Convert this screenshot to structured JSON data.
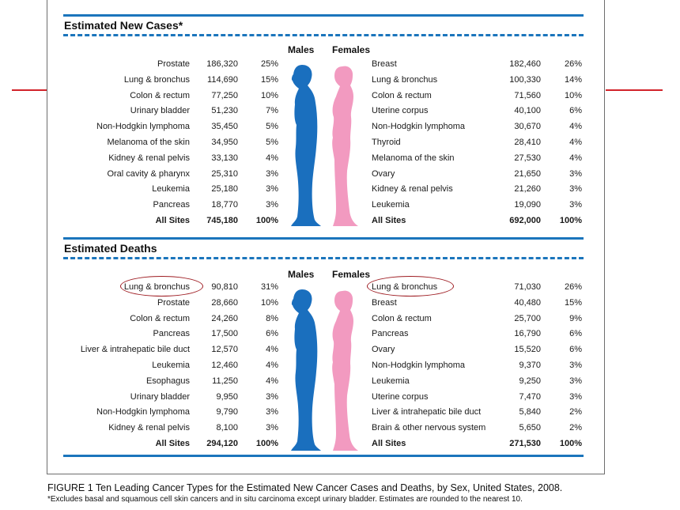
{
  "figure": {
    "caption": "FIGURE 1  Ten Leading Cancer Types for the Estimated New Cancer Cases and Deaths, by Sex, United States, 2008.",
    "footnote": "*Excludes basal and squamous cell skin cancers and in situ carcinoma except urinary bladder. Estimates are rounded to the nearest 10."
  },
  "colors": {
    "accent_blue": "#1b75bc",
    "male_blue": "#1a6fbe",
    "female_pink": "#f29ac0",
    "highlight_red": "#9e1c22"
  },
  "new_cases": {
    "title": "Estimated New Cases*",
    "males_label": "Males",
    "females_label": "Females",
    "males": [
      {
        "name": "Prostate",
        "count": "186,320",
        "pct": "25%"
      },
      {
        "name": "Lung & bronchus",
        "count": "114,690",
        "pct": "15%"
      },
      {
        "name": "Colon & rectum",
        "count": "77,250",
        "pct": "10%"
      },
      {
        "name": "Urinary bladder",
        "count": "51,230",
        "pct": "7%"
      },
      {
        "name": "Non-Hodgkin lymphoma",
        "count": "35,450",
        "pct": "5%"
      },
      {
        "name": "Melanoma of the skin",
        "count": "34,950",
        "pct": "5%"
      },
      {
        "name": "Kidney & renal pelvis",
        "count": "33,130",
        "pct": "4%"
      },
      {
        "name": "Oral cavity & pharynx",
        "count": "25,310",
        "pct": "3%"
      },
      {
        "name": "Leukemia",
        "count": "25,180",
        "pct": "3%"
      },
      {
        "name": "Pancreas",
        "count": "18,770",
        "pct": "3%"
      },
      {
        "name": "All Sites",
        "count": "745,180",
        "pct": "100%"
      }
    ],
    "females": [
      {
        "name": "Breast",
        "count": "182,460",
        "pct": "26%"
      },
      {
        "name": "Lung & bronchus",
        "count": "100,330",
        "pct": "14%"
      },
      {
        "name": "Colon & rectum",
        "count": "71,560",
        "pct": "10%"
      },
      {
        "name": "Uterine corpus",
        "count": "40,100",
        "pct": "6%"
      },
      {
        "name": "Non-Hodgkin lymphoma",
        "count": "30,670",
        "pct": "4%"
      },
      {
        "name": "Thyroid",
        "count": "28,410",
        "pct": "4%"
      },
      {
        "name": "Melanoma of the skin",
        "count": "27,530",
        "pct": "4%"
      },
      {
        "name": "Ovary",
        "count": "21,650",
        "pct": "3%"
      },
      {
        "name": "Kidney & renal pelvis",
        "count": "21,260",
        "pct": "3%"
      },
      {
        "name": "Leukemia",
        "count": "19,090",
        "pct": "3%"
      },
      {
        "name": "All Sites",
        "count": "692,000",
        "pct": "100%"
      }
    ]
  },
  "deaths": {
    "title": "Estimated Deaths",
    "males_label": "Males",
    "females_label": "Females",
    "males": [
      {
        "name": "Lung & bronchus",
        "count": "90,810",
        "pct": "31%"
      },
      {
        "name": "Prostate",
        "count": "28,660",
        "pct": "10%"
      },
      {
        "name": "Colon & rectum",
        "count": "24,260",
        "pct": "8%"
      },
      {
        "name": "Pancreas",
        "count": "17,500",
        "pct": "6%"
      },
      {
        "name": "Liver & intrahepatic bile duct",
        "count": "12,570",
        "pct": "4%"
      },
      {
        "name": "Leukemia",
        "count": "12,460",
        "pct": "4%"
      },
      {
        "name": "Esophagus",
        "count": "11,250",
        "pct": "4%"
      },
      {
        "name": "Urinary bladder",
        "count": "9,950",
        "pct": "3%"
      },
      {
        "name": "Non-Hodgkin lymphoma",
        "count": "9,790",
        "pct": "3%"
      },
      {
        "name": "Kidney & renal pelvis",
        "count": "8,100",
        "pct": "3%"
      },
      {
        "name": "All Sites",
        "count": "294,120",
        "pct": "100%"
      }
    ],
    "females": [
      {
        "name": "Lung & bronchus",
        "count": "71,030",
        "pct": "26%"
      },
      {
        "name": "Breast",
        "count": "40,480",
        "pct": "15%"
      },
      {
        "name": "Colon & rectum",
        "count": "25,700",
        "pct": "9%"
      },
      {
        "name": "Pancreas",
        "count": "16,790",
        "pct": "6%"
      },
      {
        "name": "Ovary",
        "count": "15,520",
        "pct": "6%"
      },
      {
        "name": "Non-Hodgkin lymphoma",
        "count": "9,370",
        "pct": "3%"
      },
      {
        "name": "Leukemia",
        "count": "9,250",
        "pct": "3%"
      },
      {
        "name": "Uterine corpus",
        "count": "7,470",
        "pct": "3%"
      },
      {
        "name": "Liver & intrahepatic bile duct",
        "count": "5,840",
        "pct": "2%"
      },
      {
        "name": "Brain & other nervous system",
        "count": "5,650",
        "pct": "2%"
      },
      {
        "name": "All Sites",
        "count": "271,530",
        "pct": "100%"
      }
    ]
  }
}
